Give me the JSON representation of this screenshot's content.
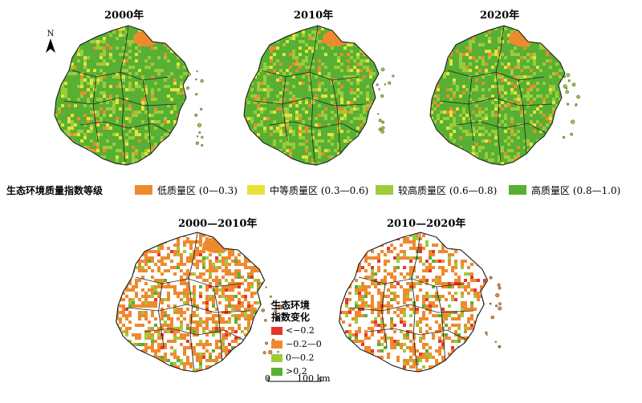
{
  "panels": [
    {
      "title": "2000年"
    },
    {
      "title": "2010年"
    },
    {
      "title": "2020年"
    },
    {
      "title": "2000—2010年"
    },
    {
      "title": "2010—2020年"
    }
  ],
  "quality_legend": {
    "heading": "生态环境质量指数等级",
    "items": [
      {
        "label": "低质量区 (0—0.3)",
        "color": "#ee8a2e"
      },
      {
        "label": "中等质量区 (0.3—0.6)",
        "color": "#e8e23a"
      },
      {
        "label": "较高质量区 (0.6—0.8)",
        "color": "#9ccc3b"
      },
      {
        "label": "高质量区 (0.8—1.0)",
        "color": "#57b033"
      }
    ]
  },
  "change_legend": {
    "heading_line1": "生态环境",
    "heading_line2": "指数变化",
    "items": [
      {
        "label": "<−0.2",
        "color": "#e8352b"
      },
      {
        "label": "−0.2—0",
        "color": "#ee8a2e"
      },
      {
        "label": "0—0.2",
        "color": "#9ccc3b"
      },
      {
        "label": ">0.2",
        "color": "#57b033"
      }
    ]
  },
  "north_arrow": {
    "label": "N"
  },
  "scale_bar": {
    "start": "0",
    "end": "100 km"
  }
}
